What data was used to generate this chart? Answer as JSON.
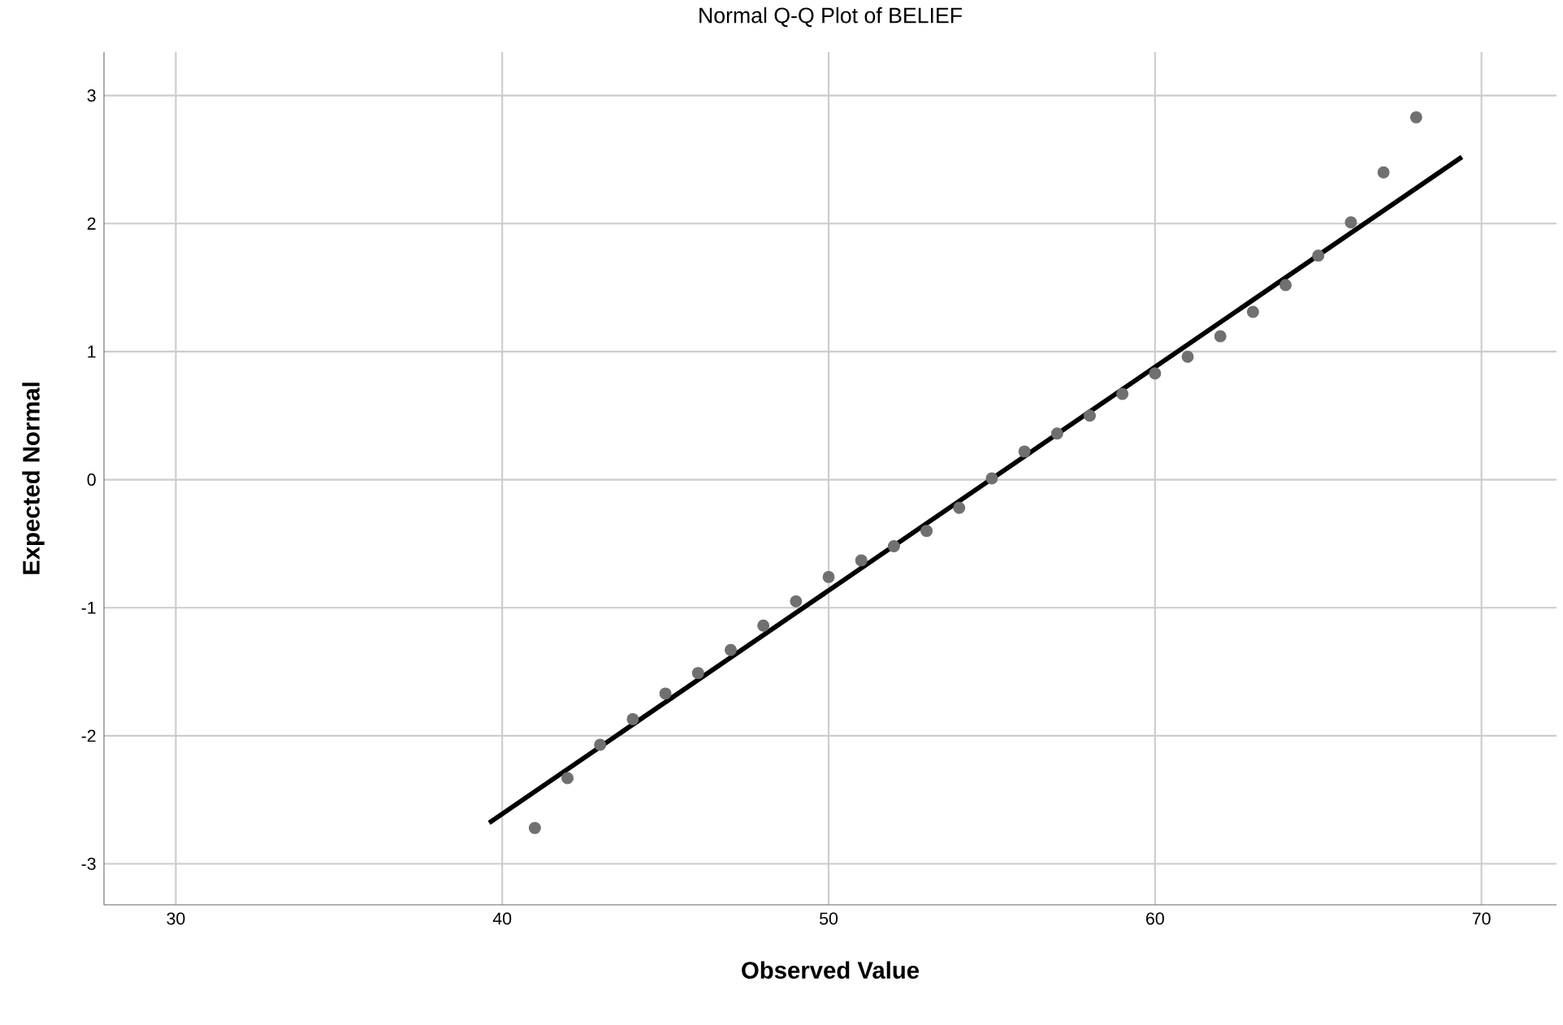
{
  "chart_data": {
    "type": "scatter",
    "title": "Normal Q-Q Plot of BELIEF",
    "xlabel": "Observed Value",
    "ylabel": "Expected Normal",
    "xlim": [
      27.8,
      72.3
    ],
    "ylim": [
      -3.32,
      3.34
    ],
    "xticks": [
      30,
      40,
      50,
      60,
      70
    ],
    "yticks": [
      -3,
      -2,
      -1,
      0,
      1,
      2,
      3
    ],
    "grid": true,
    "marker": "circle",
    "series": [
      {
        "type": "scatter",
        "color": "#707070",
        "x": [
          41,
          42,
          43,
          44,
          45,
          46,
          47,
          48,
          49,
          50,
          51,
          52,
          53,
          54,
          55,
          56,
          57,
          58,
          59,
          60,
          61,
          62,
          63,
          64,
          65,
          66,
          67,
          68
        ],
        "values": [
          -2.72,
          -2.33,
          -2.07,
          -1.87,
          -1.67,
          -1.51,
          -1.33,
          -1.14,
          -0.95,
          -0.76,
          -0.63,
          -0.52,
          -0.4,
          -0.22,
          0.01,
          0.22,
          0.36,
          0.5,
          0.67,
          0.83,
          0.96,
          1.12,
          1.31,
          1.52,
          1.75,
          2.01,
          2.4,
          2.83
        ]
      },
      {
        "type": "line",
        "color": "#000000",
        "marker": "none",
        "x": [
          39.6,
          69.4
        ],
        "values": [
          -2.68,
          2.52
        ]
      }
    ]
  }
}
